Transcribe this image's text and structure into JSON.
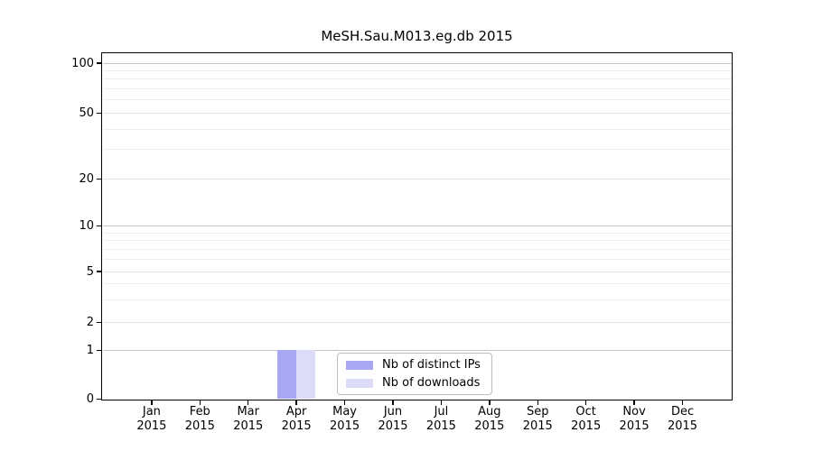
{
  "chart_data": {
    "type": "bar",
    "title": "MeSH.Sau.M013.eg.db 2015",
    "categories": [
      "Jan",
      "Feb",
      "Mar",
      "Apr",
      "May",
      "Jun",
      "Jul",
      "Aug",
      "Sep",
      "Oct",
      "Nov",
      "Dec"
    ],
    "x_year_label": "2015",
    "series": [
      {
        "name": "Nb of distinct IPs",
        "color": "#a8a8f2",
        "values": [
          0,
          0,
          0,
          1,
          0,
          0,
          0,
          0,
          0,
          0,
          0,
          0
        ]
      },
      {
        "name": "Nb of downloads",
        "color": "#dcdcf9",
        "values": [
          0,
          0,
          0,
          1,
          0,
          0,
          0,
          0,
          0,
          0,
          0,
          0
        ]
      }
    ],
    "yscale": "log-like-with-zero",
    "y_ticks": [
      0,
      1,
      2,
      5,
      10,
      20,
      50,
      100
    ],
    "y_minor_gridlines": [
      3,
      4,
      6,
      7,
      8,
      9,
      30,
      40,
      60,
      70,
      80,
      90
    ],
    "ylim": [
      0,
      120
    ],
    "grid": "horizontal",
    "legend_position": "lower-center",
    "grid_colors": {
      "decade": "#c6c6c6",
      "major": "#e2e2e2",
      "minor": "#ededed"
    }
  }
}
